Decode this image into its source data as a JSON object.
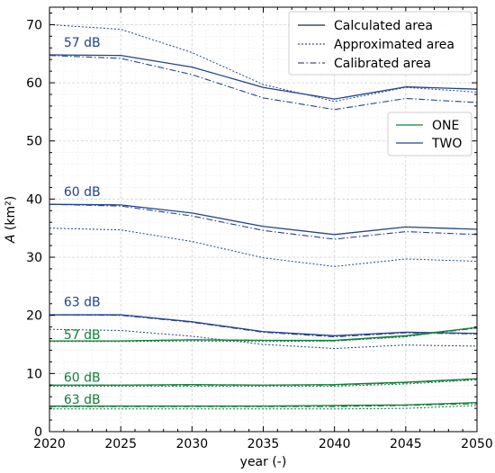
{
  "chart_data": {
    "type": "line",
    "xlabel": "year (-)",
    "ylabel_italic": "A",
    "ylabel_unit": " (km²)",
    "xlim": [
      2020,
      2050
    ],
    "ylim": [
      0,
      73
    ],
    "xticks": [
      2020,
      2025,
      2030,
      2035,
      2040,
      2045,
      2050
    ],
    "yticks": [
      0,
      10,
      20,
      30,
      40,
      50,
      60,
      70
    ],
    "grid": true,
    "x": [
      2020,
      2025,
      2030,
      2035,
      2040,
      2045,
      2050
    ],
    "colors": {
      "ONE": "#137f3a",
      "TWO": "#23438d"
    },
    "series": [
      {
        "scenario": "TWO",
        "level": "57 dB",
        "kind": "calculated",
        "values": [
          64.8,
          64.7,
          62.7,
          59.2,
          57.2,
          59.3,
          58.9
        ]
      },
      {
        "scenario": "TWO",
        "level": "57 dB",
        "kind": "approximated",
        "values": [
          70.0,
          69.2,
          65.2,
          59.7,
          56.8,
          59.2,
          58.4
        ]
      },
      {
        "scenario": "TWO",
        "level": "57 dB",
        "kind": "calibrated",
        "values": [
          64.7,
          64.2,
          61.4,
          57.4,
          55.4,
          57.3,
          56.6
        ]
      },
      {
        "scenario": "TWO",
        "level": "60 dB",
        "kind": "calculated",
        "values": [
          39.1,
          39.0,
          37.6,
          35.3,
          33.9,
          35.2,
          34.8
        ]
      },
      {
        "scenario": "TWO",
        "level": "60 dB",
        "kind": "approximated",
        "values": [
          35.0,
          34.7,
          32.7,
          29.9,
          28.4,
          29.7,
          29.3
        ]
      },
      {
        "scenario": "TWO",
        "level": "60 dB",
        "kind": "calibrated",
        "values": [
          39.1,
          38.8,
          37.1,
          34.6,
          33.1,
          34.4,
          33.9
        ]
      },
      {
        "scenario": "TWO",
        "level": "63 dB",
        "kind": "calculated",
        "values": [
          20.1,
          20.1,
          18.9,
          17.2,
          16.5,
          17.1,
          16.9
        ]
      },
      {
        "scenario": "TWO",
        "level": "63 dB",
        "kind": "approximated",
        "values": [
          17.6,
          17.4,
          16.4,
          15.0,
          14.3,
          14.9,
          14.7
        ]
      },
      {
        "scenario": "TWO",
        "level": "63 dB",
        "kind": "calibrated",
        "values": [
          20.1,
          20.0,
          18.8,
          17.1,
          16.3,
          17.0,
          16.8
        ]
      },
      {
        "scenario": "ONE",
        "level": "57 dB",
        "kind": "calculated",
        "values": [
          15.6,
          15.6,
          15.8,
          15.7,
          15.7,
          16.5,
          17.9
        ]
      },
      {
        "scenario": "ONE",
        "level": "57 dB",
        "kind": "approximated",
        "values": [
          15.5,
          15.5,
          15.6,
          15.5,
          15.6,
          16.3,
          18.0
        ]
      },
      {
        "scenario": "ONE",
        "level": "57 dB",
        "kind": "calibrated",
        "values": [
          15.6,
          15.6,
          15.8,
          15.7,
          15.6,
          16.4,
          17.8
        ]
      },
      {
        "scenario": "ONE",
        "level": "60 dB",
        "kind": "calculated",
        "values": [
          8.0,
          8.0,
          8.1,
          8.0,
          8.1,
          8.5,
          9.1
        ]
      },
      {
        "scenario": "ONE",
        "level": "60 dB",
        "kind": "approximated",
        "values": [
          7.8,
          7.8,
          7.8,
          7.8,
          7.8,
          8.2,
          8.9
        ]
      },
      {
        "scenario": "ONE",
        "level": "60 dB",
        "kind": "calibrated",
        "values": [
          8.0,
          8.0,
          8.0,
          8.0,
          8.0,
          8.4,
          9.0
        ]
      },
      {
        "scenario": "ONE",
        "level": "63 dB",
        "kind": "calculated",
        "values": [
          4.4,
          4.4,
          4.4,
          4.4,
          4.5,
          4.6,
          5.0
        ]
      },
      {
        "scenario": "ONE",
        "level": "63 dB",
        "kind": "approximated",
        "values": [
          3.9,
          3.9,
          3.9,
          3.9,
          3.9,
          4.0,
          4.5
        ]
      },
      {
        "scenario": "ONE",
        "level": "63 dB",
        "kind": "calibrated",
        "values": [
          4.3,
          4.3,
          4.3,
          4.3,
          4.3,
          4.5,
          4.8
        ]
      }
    ],
    "annotations": [
      {
        "text": "57 dB",
        "scenario": "TWO",
        "x": 2021.0,
        "y": 66.2
      },
      {
        "text": "60 dB",
        "scenario": "TWO",
        "x": 2021.0,
        "y": 40.5
      },
      {
        "text": "63 dB",
        "scenario": "TWO",
        "x": 2021.0,
        "y": 21.6
      },
      {
        "text": "57 dB",
        "scenario": "ONE",
        "x": 2021.0,
        "y": 15.9
      },
      {
        "text": "60 dB",
        "scenario": "ONE",
        "x": 2021.0,
        "y": 8.6
      },
      {
        "text": "63 dB",
        "scenario": "ONE",
        "x": 2021.0,
        "y": 4.8
      }
    ],
    "legend_styles": {
      "position": "top-right",
      "entries": [
        {
          "label": "Calculated area",
          "kind": "calculated"
        },
        {
          "label": "Approximated area",
          "kind": "approximated"
        },
        {
          "label": "Calibrated area",
          "kind": "calibrated"
        }
      ]
    },
    "legend_scenarios": {
      "position": "upper-right",
      "entries": [
        {
          "label": "ONE",
          "scenario": "ONE"
        },
        {
          "label": "TWO",
          "scenario": "TWO"
        }
      ]
    }
  }
}
